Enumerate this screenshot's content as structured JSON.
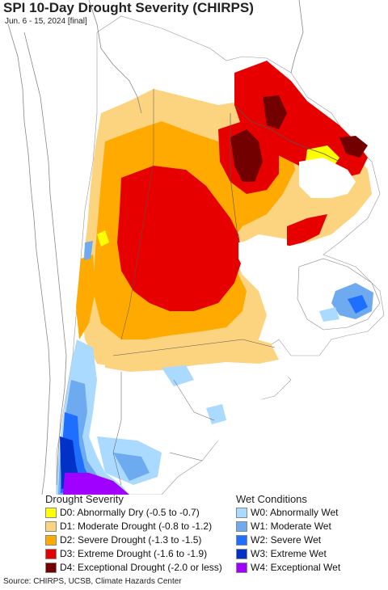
{
  "title": "SPI 10-Day Drought Severity (CHIRPS)",
  "subtitle": "Jun. 6 - 15, 2024 [final]",
  "legend": {
    "drought_heading": "Drought Severity",
    "wet_heading": "Wet Conditions",
    "drought": [
      {
        "label": "D0: Abnormally Dry (-0.5 to -0.7)",
        "color": "#ffff00"
      },
      {
        "label": "D1: Moderate Drought (-0.8 to -1.2)",
        "color": "#fcd37f"
      },
      {
        "label": "D2: Severe Drought (-1.3 to -1.5)",
        "color": "#ffaa00"
      },
      {
        "label": "D3: Extreme Drought (-1.6 to -1.9)",
        "color": "#e60000"
      },
      {
        "label": "D4: Exceptional Drought (-2.0 or less)",
        "color": "#730000"
      }
    ],
    "wet": [
      {
        "label": "W0: Abnormally Wet",
        "color": "#aadaff"
      },
      {
        "label": "W1: Moderate Wet",
        "color": "#6eaaf0"
      },
      {
        "label": "W2: Severe Wet",
        "color": "#1e6eff"
      },
      {
        "label": "W3: Extreme Wet",
        "color": "#0032c8"
      },
      {
        "label": "W4: Exceptional Wet",
        "color": "#a000ff"
      }
    ]
  },
  "source": "Source: CHIRPS, UCSB, Climate Hazards Center"
}
